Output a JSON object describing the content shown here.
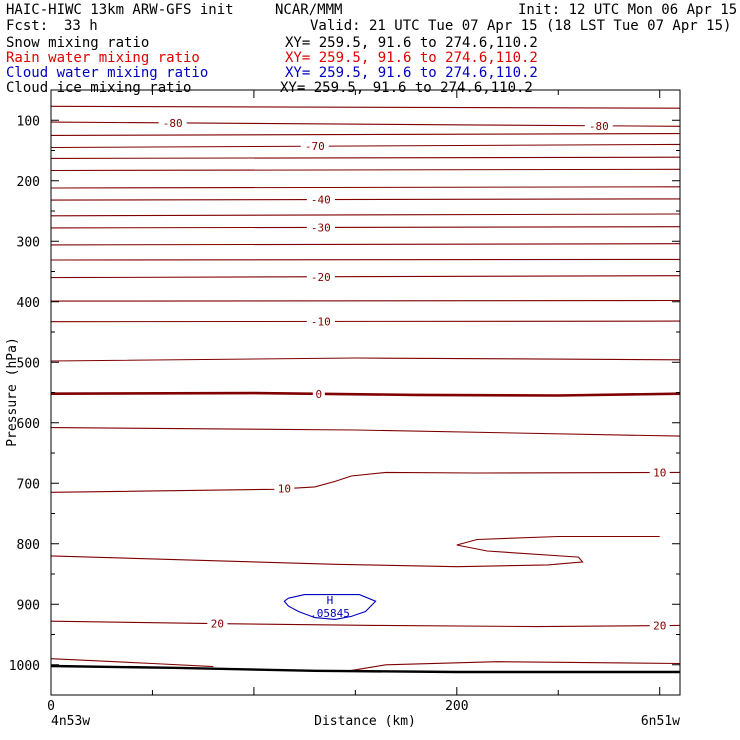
{
  "header": {
    "model": "HAIC-HIWC 13km ARW-GFS init",
    "org": "NCAR/MMM",
    "init": "Init: 12 UTC Mon 06 Apr 15",
    "fcst_label": "Fcst:",
    "fcst_value": "33 h",
    "valid": "Valid: 21 UTC Tue 07 Apr 15 (18 LST Tue 07 Apr 15)"
  },
  "legend": [
    {
      "label": "Snow mixing ratio",
      "xy": "XY= 259.5, 91.6 to 274.6,110.2",
      "color": "#000000"
    },
    {
      "label": "Rain water mixing ratio",
      "xy": "XY= 259.5, 91.6 to 274.6,110.2",
      "color": "#e00000"
    },
    {
      "label": "Cloud water mixing ratio",
      "xy": "XY= 259.5, 91.6 to 274.6,110.2",
      "color": "#0000c0"
    },
    {
      "label": "Cloud ice mixing ratio",
      "xy": "XY= 259.5, 91.6 to 274.6,110.2",
      "color": "#000000"
    }
  ],
  "chart_data": {
    "type": "line",
    "xlabel": "Distance (km)",
    "ylabel": "Pressure (hPa)",
    "xlim": [
      0,
      310
    ],
    "ylim": [
      50,
      1050
    ],
    "x_ticks": [
      0,
      200
    ],
    "y_ticks": [
      100,
      200,
      300,
      400,
      500,
      600,
      700,
      800,
      900,
      1000
    ],
    "x_endpoints": [
      "4n53w",
      "6n51w"
    ],
    "temperature_color": "#800000",
    "ground_color": "#000000",
    "cloud_color": "#0000c0",
    "isotherms": [
      {
        "label": "-80",
        "points": [
          [
            0,
            77
          ],
          [
            310,
            80
          ]
        ]
      },
      {
        "label": "-80",
        "points": [
          [
            0,
            103
          ],
          [
            310,
            110
          ]
        ],
        "labels_at": [
          [
            60,
            -1
          ],
          [
            270,
            -1
          ]
        ]
      },
      {
        "label": "",
        "points": [
          [
            0,
            125
          ],
          [
            310,
            122
          ]
        ]
      },
      {
        "label": "-70",
        "points": [
          [
            0,
            145
          ],
          [
            310,
            140
          ]
        ],
        "labels_at": [
          [
            130,
            -1
          ]
        ]
      },
      {
        "label": "",
        "points": [
          [
            0,
            163
          ],
          [
            310,
            161
          ]
        ]
      },
      {
        "label": "",
        "points": [
          [
            0,
            183
          ],
          [
            310,
            181
          ]
        ]
      },
      {
        "label": "",
        "points": [
          [
            0,
            212
          ],
          [
            310,
            210
          ]
        ]
      },
      {
        "label": "-40",
        "points": [
          [
            0,
            232
          ],
          [
            310,
            230
          ]
        ],
        "labels_at": [
          [
            133,
            -1
          ]
        ]
      },
      {
        "label": "",
        "points": [
          [
            0,
            258
          ],
          [
            310,
            255
          ]
        ]
      },
      {
        "label": "-30",
        "points": [
          [
            0,
            278
          ],
          [
            310,
            276
          ]
        ],
        "labels_at": [
          [
            133,
            -1
          ]
        ]
      },
      {
        "label": "",
        "points": [
          [
            0,
            306
          ],
          [
            310,
            304
          ]
        ]
      },
      {
        "label": "",
        "points": [
          [
            0,
            331
          ],
          [
            310,
            330
          ]
        ]
      },
      {
        "label": "-20",
        "points": [
          [
            0,
            360
          ],
          [
            310,
            357
          ]
        ],
        "labels_at": [
          [
            133,
            -1
          ]
        ]
      },
      {
        "label": "",
        "points": [
          [
            0,
            399
          ],
          [
            310,
            398
          ]
        ]
      },
      {
        "label": "-10",
        "points": [
          [
            0,
            433
          ],
          [
            310,
            432
          ]
        ],
        "labels_at": [
          [
            133,
            -1
          ]
        ]
      },
      {
        "label": "",
        "points": [
          [
            0,
            498
          ],
          [
            150,
            493
          ],
          [
            310,
            496
          ]
        ]
      },
      {
        "label": "0",
        "points": [
          [
            0,
            552
          ],
          [
            100,
            551
          ],
          [
            180,
            554
          ],
          [
            250,
            555
          ],
          [
            310,
            552
          ]
        ],
        "bold": true,
        "labels_at": [
          [
            132,
            -1
          ]
        ]
      },
      {
        "label": "",
        "points": [
          [
            0,
            608
          ],
          [
            150,
            612
          ],
          [
            310,
            622
          ]
        ]
      },
      {
        "label": "10",
        "points": [
          [
            0,
            715
          ],
          [
            110,
            710
          ],
          [
            130,
            706
          ],
          [
            140,
            697
          ],
          [
            148,
            688
          ],
          [
            165,
            682
          ],
          [
            210,
            683
          ],
          [
            310,
            682
          ]
        ],
        "labels_at": [
          [
            115,
            -1
          ],
          [
            300,
            -1
          ]
        ]
      },
      {
        "label": "",
        "points": [
          [
            300,
            788
          ],
          [
            250,
            788
          ],
          [
            210,
            793
          ],
          [
            200,
            802
          ],
          [
            215,
            812
          ],
          [
            260,
            822
          ],
          [
            262,
            830
          ],
          [
            245,
            835
          ],
          [
            200,
            838
          ],
          [
            140,
            834
          ],
          [
            50,
            825
          ],
          [
            0,
            820
          ]
        ]
      },
      {
        "label": "20",
        "points": [
          [
            0,
            928
          ],
          [
            80,
            932
          ],
          [
            160,
            935
          ],
          [
            240,
            937
          ],
          [
            310,
            935
          ]
        ],
        "labels_at": [
          [
            82,
            -1
          ],
          [
            300,
            -1
          ]
        ]
      },
      {
        "label": "",
        "points": [
          [
            0,
            990
          ],
          [
            50,
            998
          ],
          [
            80,
            1003
          ]
        ]
      },
      {
        "label": "",
        "points": [
          [
            147,
            1010
          ],
          [
            165,
            1000
          ],
          [
            220,
            995
          ],
          [
            310,
            998
          ]
        ]
      }
    ],
    "ground": [
      [
        0,
        1002
      ],
      [
        60,
        1005
      ],
      [
        130,
        1010
      ],
      [
        200,
        1012
      ],
      [
        310,
        1012
      ]
    ],
    "clouds": [
      {
        "label_top": "H",
        "label_bottom": ".05845",
        "points": [
          [
            117,
            890
          ],
          [
            125,
            884
          ],
          [
            152,
            884
          ],
          [
            160,
            895
          ],
          [
            155,
            912
          ],
          [
            148,
            920
          ],
          [
            140,
            925
          ],
          [
            130,
            922
          ],
          [
            122,
            912
          ],
          [
            117,
            903
          ],
          [
            115,
            895
          ],
          [
            117,
            890
          ]
        ]
      }
    ]
  }
}
